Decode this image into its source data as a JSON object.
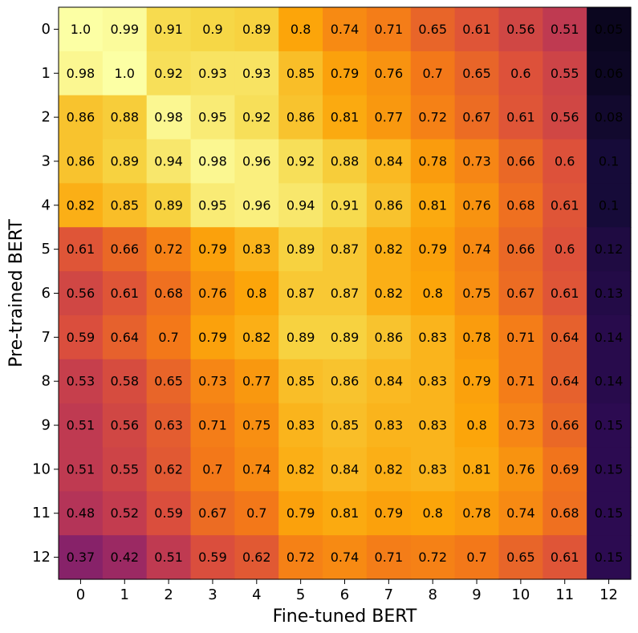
{
  "chart_data": {
    "type": "heatmap",
    "title": "",
    "xlabel": "Fine-tuned BERT",
    "ylabel": "Pre-trained BERT",
    "x_categories": [
      "0",
      "1",
      "2",
      "3",
      "4",
      "5",
      "6",
      "7",
      "8",
      "9",
      "10",
      "11",
      "12"
    ],
    "y_categories": [
      "0",
      "1",
      "2",
      "3",
      "4",
      "5",
      "6",
      "7",
      "8",
      "9",
      "10",
      "11",
      "12"
    ],
    "colormap": "inferno",
    "value_range": [
      0,
      1
    ],
    "values": [
      [
        "1.0",
        "0.99",
        "0.91",
        "0.9",
        "0.89",
        "0.8",
        "0.74",
        "0.71",
        "0.65",
        "0.61",
        "0.56",
        "0.51",
        "0.05"
      ],
      [
        "0.98",
        "1.0",
        "0.92",
        "0.93",
        "0.93",
        "0.85",
        "0.79",
        "0.76",
        "0.7",
        "0.65",
        "0.6",
        "0.55",
        "0.06"
      ],
      [
        "0.86",
        "0.88",
        "0.98",
        "0.95",
        "0.92",
        "0.86",
        "0.81",
        "0.77",
        "0.72",
        "0.67",
        "0.61",
        "0.56",
        "0.08"
      ],
      [
        "0.86",
        "0.89",
        "0.94",
        "0.98",
        "0.96",
        "0.92",
        "0.88",
        "0.84",
        "0.78",
        "0.73",
        "0.66",
        "0.6",
        "0.1"
      ],
      [
        "0.82",
        "0.85",
        "0.89",
        "0.95",
        "0.96",
        "0.94",
        "0.91",
        "0.86",
        "0.81",
        "0.76",
        "0.68",
        "0.61",
        "0.1"
      ],
      [
        "0.61",
        "0.66",
        "0.72",
        "0.79",
        "0.83",
        "0.89",
        "0.87",
        "0.82",
        "0.79",
        "0.74",
        "0.66",
        "0.6",
        "0.12"
      ],
      [
        "0.56",
        "0.61",
        "0.68",
        "0.76",
        "0.8",
        "0.87",
        "0.87",
        "0.82",
        "0.8",
        "0.75",
        "0.67",
        "0.61",
        "0.13"
      ],
      [
        "0.59",
        "0.64",
        "0.7",
        "0.79",
        "0.82",
        "0.89",
        "0.89",
        "0.86",
        "0.83",
        "0.78",
        "0.71",
        "0.64",
        "0.14"
      ],
      [
        "0.53",
        "0.58",
        "0.65",
        "0.73",
        "0.77",
        "0.85",
        "0.86",
        "0.84",
        "0.83",
        "0.79",
        "0.71",
        "0.64",
        "0.14"
      ],
      [
        "0.51",
        "0.56",
        "0.63",
        "0.71",
        "0.75",
        "0.83",
        "0.85",
        "0.83",
        "0.83",
        "0.8",
        "0.73",
        "0.66",
        "0.15"
      ],
      [
        "0.51",
        "0.55",
        "0.62",
        "0.7",
        "0.74",
        "0.82",
        "0.84",
        "0.82",
        "0.83",
        "0.81",
        "0.76",
        "0.69",
        "0.15"
      ],
      [
        "0.48",
        "0.52",
        "0.59",
        "0.67",
        "0.7",
        "0.79",
        "0.81",
        "0.79",
        "0.8",
        "0.78",
        "0.74",
        "0.68",
        "0.15"
      ],
      [
        "0.37",
        "0.42",
        "0.51",
        "0.59",
        "0.62",
        "0.72",
        "0.74",
        "0.71",
        "0.72",
        "0.7",
        "0.65",
        "0.61",
        "0.15"
      ]
    ]
  }
}
